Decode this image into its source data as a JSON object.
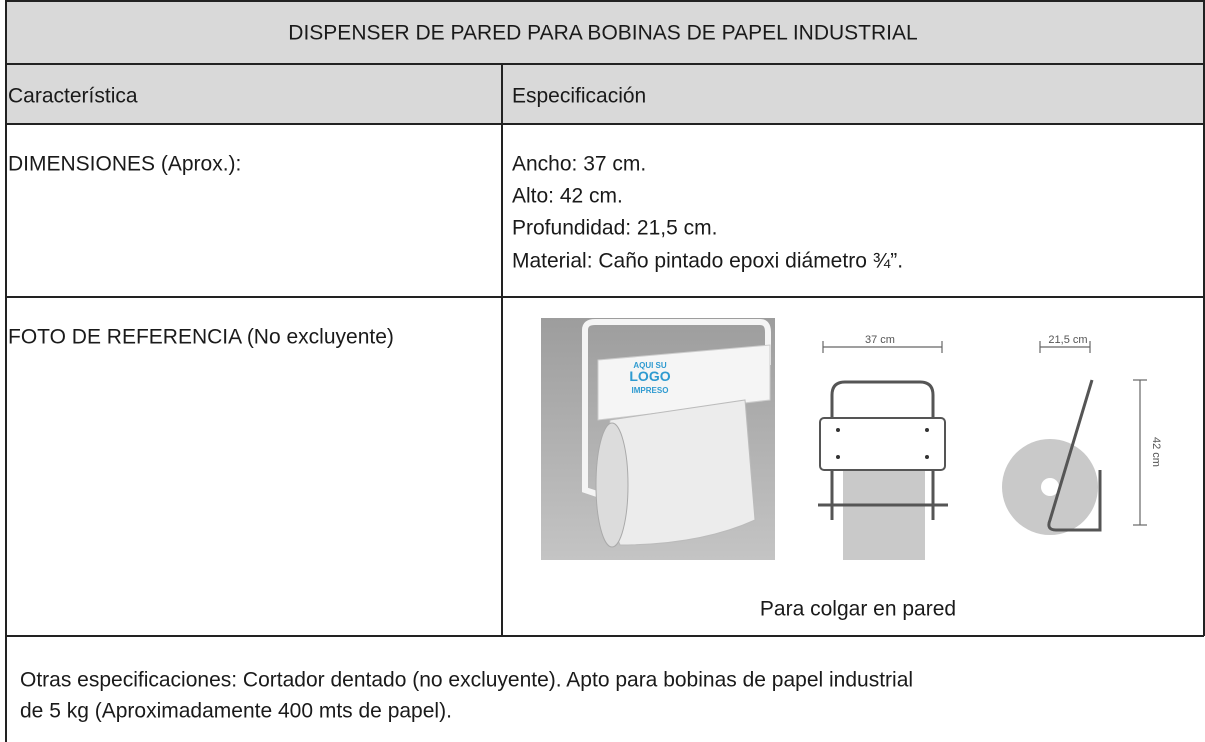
{
  "table": {
    "title": "DISPENSER DE PARED PARA BOBINAS DE PAPEL INDUSTRIAL",
    "header": [
      "Característica",
      "Especificación"
    ],
    "dimensions": {
      "label": "DIMENSIONES (Aprox.):",
      "lines": [
        "Ancho: 37 cm.",
        "Alto: 42 cm.",
        "Profundidad: 21,5 cm.",
        "Material: Caño pintado epoxi diámetro ¾”."
      ]
    },
    "photo": {
      "label": "FOTO DE REFERENCIA (No excluyente)",
      "logo_text": [
        "AQUI SU",
        "LOGO",
        "IMPRESO"
      ],
      "width_label": "37 cm",
      "depth_label": "21,5 cm",
      "height_label": "42 cm",
      "caption": "Para colgar en pared"
    },
    "footer": [
      "Otras especificaciones: Cortador dentado (no excluyente). Apto para bobinas de papel industrial",
      "de 5 kg (Aproximadamente 400 mts de papel)."
    ]
  }
}
